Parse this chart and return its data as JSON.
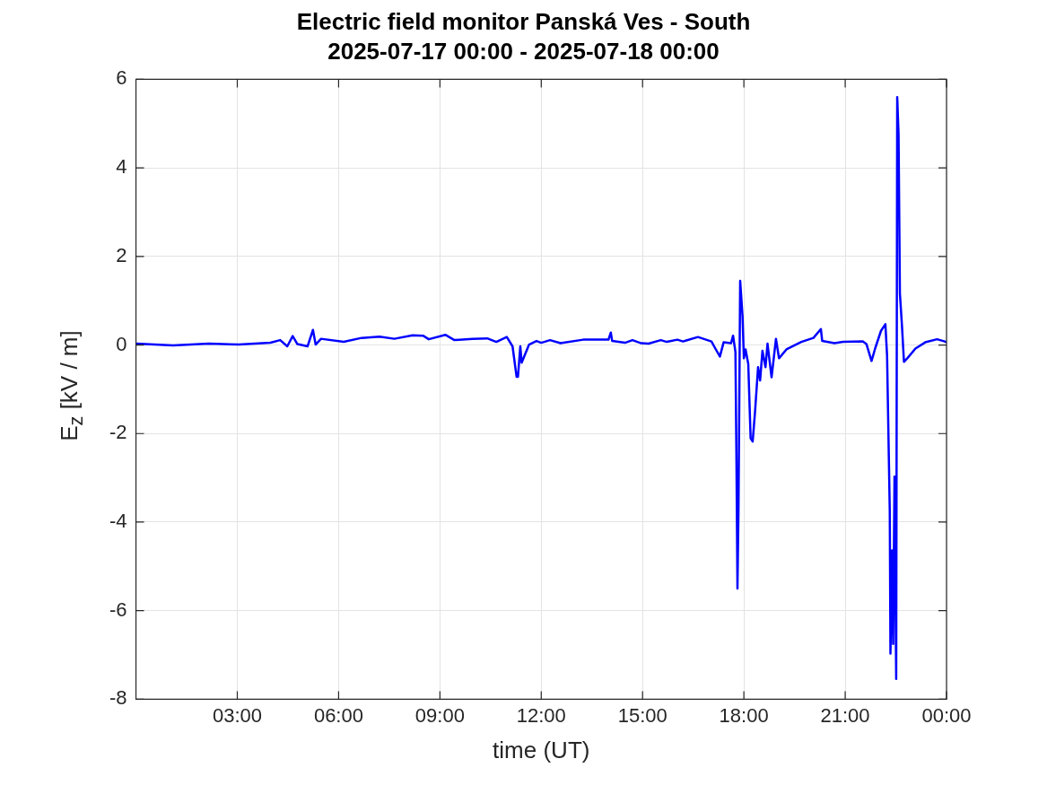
{
  "chart_data": {
    "type": "line",
    "title": "Electric field monitor Panská Ves - South",
    "subtitle": "2025-07-17 00:00 - 2025-07-18 00:00",
    "xlabel": "time (UT)",
    "ylabel": "E$_{z}$ [kV / m]",
    "xlim": [
      0,
      24
    ],
    "xticks": [
      {
        "value": 3,
        "label": "03:00"
      },
      {
        "value": 6,
        "label": "06:00"
      },
      {
        "value": 9,
        "label": "09:00"
      },
      {
        "value": 12,
        "label": "12:00"
      },
      {
        "value": 15,
        "label": "15:00"
      },
      {
        "value": 18,
        "label": "18:00"
      },
      {
        "value": 21,
        "label": "21:00"
      },
      {
        "value": 24,
        "label": "00:00"
      }
    ],
    "ylim": [
      -8,
      6
    ],
    "yticks": [
      -8,
      -6,
      -4,
      -2,
      0,
      2,
      4,
      6
    ],
    "grid": true,
    "legend": false,
    "marker": "none",
    "line_style": "solid",
    "series": [
      {
        "color": "#0000ff",
        "x": [
          0,
          1.1,
          2.16,
          3.05,
          3.98,
          4.27,
          4.48,
          4.64,
          4.78,
          5.08,
          5.24,
          5.32,
          5.48,
          6.15,
          6.68,
          7.21,
          7.65,
          8.19,
          8.5,
          8.67,
          9.16,
          9.43,
          9.96,
          10.4,
          10.67,
          10.98,
          11.15,
          11.27,
          11.31,
          11.38,
          11.42,
          11.64,
          11.86,
          12.0,
          12.26,
          12.57,
          13.24,
          13.99,
          14.06,
          14.1,
          14.48,
          14.7,
          14.96,
          15.18,
          15.54,
          15.72,
          16.03,
          16.2,
          16.64,
          17.04,
          17.14,
          17.29,
          17.4,
          17.62,
          17.68,
          17.75,
          17.78,
          17.81,
          17.84,
          17.89,
          17.96,
          18.0,
          18.05,
          18.13,
          18.2,
          18.26,
          18.33,
          18.42,
          18.48,
          18.55,
          18.64,
          18.7,
          18.82,
          18.95,
          19.04,
          19.26,
          19.7,
          20.06,
          20.28,
          20.32,
          20.68,
          20.94,
          21.52,
          21.63,
          21.78,
          21.89,
          22.06,
          22.19,
          22.24,
          22.27,
          22.32,
          22.34,
          22.39,
          22.42,
          22.46,
          22.51,
          22.54,
          22.58,
          22.62,
          22.68,
          22.74,
          22.85,
          23.08,
          23.37,
          23.72,
          23.95,
          24
        ],
        "values": [
          0.03,
          -0.01,
          0.03,
          0.01,
          0.05,
          0.11,
          -0.03,
          0.2,
          0.02,
          -0.03,
          0.34,
          0.01,
          0.14,
          0.07,
          0.16,
          0.19,
          0.14,
          0.22,
          0.21,
          0.13,
          0.23,
          0.11,
          0.14,
          0.15,
          0.07,
          0.18,
          -0.03,
          -0.72,
          -0.72,
          -0.03,
          -0.4,
          0.01,
          0.09,
          0.05,
          0.11,
          0.04,
          0.12,
          0.12,
          0.28,
          0.09,
          0.05,
          0.11,
          0.04,
          0.03,
          0.11,
          0.07,
          0.12,
          0.08,
          0.18,
          0.08,
          -0.06,
          -0.26,
          0.06,
          0.04,
          0.21,
          -0.16,
          -2.59,
          -5.5,
          -3.73,
          1.45,
          0.65,
          -0.3,
          -0.1,
          -0.43,
          -2.11,
          -2.18,
          -1.51,
          -0.5,
          -0.8,
          -0.13,
          -0.5,
          0.03,
          -0.73,
          0.14,
          -0.3,
          -0.1,
          0.07,
          0.16,
          0.36,
          0.09,
          0.04,
          0.07,
          0.08,
          0.02,
          -0.36,
          -0.07,
          0.32,
          0.47,
          -0.24,
          -1.57,
          -3.76,
          -6.97,
          -4.64,
          -6.75,
          -2.97,
          -7.54,
          5.6,
          4.76,
          1.16,
          0.45,
          -0.38,
          -0.29,
          -0.08,
          0.06,
          0.13,
          0.08,
          0.06
        ]
      }
    ]
  }
}
